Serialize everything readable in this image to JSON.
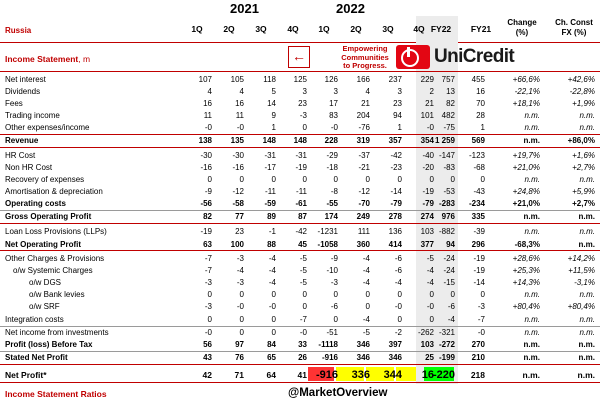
{
  "header": {
    "years": [
      "2021",
      "2022"
    ],
    "region": "Russia",
    "quarters": [
      "1Q",
      "2Q",
      "3Q",
      "4Q",
      "1Q",
      "2Q",
      "3Q",
      "4Q"
    ],
    "fy22": "FY22",
    "fy21": "FY21",
    "change": "Change\n(%)",
    "change_fx": "Ch. Const\nFX (%)"
  },
  "section_title": "Income Statement",
  "section_unit": ", m",
  "brand": {
    "arrow": "←",
    "tagline": "Empowering\nCommunities\nto Progress.",
    "name": "UniCredit",
    "logo_icon": "unicredit-logo-icon",
    "brand_color": "#e30613"
  },
  "rows": [
    {
      "label": "Net interest",
      "values": [
        "107",
        "105",
        "118",
        "125",
        "126",
        "166",
        "237",
        "229",
        "757",
        "455",
        "+66,6%",
        "+42,6%"
      ]
    },
    {
      "label": "Dividends",
      "values": [
        "4",
        "4",
        "5",
        "3",
        "3",
        "4",
        "3",
        "2",
        "13",
        "16",
        "-22,1%",
        "-22,8%"
      ]
    },
    {
      "label": "Fees",
      "values": [
        "16",
        "16",
        "14",
        "23",
        "17",
        "21",
        "23",
        "21",
        "82",
        "70",
        "+18,1%",
        "+1,9%"
      ]
    },
    {
      "label": "Trading income",
      "values": [
        "11",
        "11",
        "9",
        "-3",
        "83",
        "204",
        "94",
        "101",
        "482",
        "28",
        "n.m.",
        "n.m."
      ]
    },
    {
      "label": "Other expenses/income",
      "values": [
        "-0",
        "-0",
        "1",
        "0",
        "-0",
        "-76",
        "1",
        "-0",
        "-75",
        "1",
        "n.m.",
        "n.m."
      ]
    },
    {
      "label": "Revenue",
      "values": [
        "138",
        "135",
        "148",
        "148",
        "228",
        "319",
        "357",
        "354",
        "1 259",
        "569",
        "n.m.",
        "+86,0%"
      ]
    },
    {
      "label": "HR Cost",
      "values": [
        "-30",
        "-30",
        "-31",
        "-31",
        "-29",
        "-37",
        "-42",
        "-40",
        "-147",
        "-123",
        "+19,7%",
        "+1,6%"
      ]
    },
    {
      "label": "Non HR Cost",
      "values": [
        "-16",
        "-16",
        "-17",
        "-19",
        "-18",
        "-21",
        "-23",
        "-20",
        "-83",
        "-68",
        "+21,0%",
        "+2,7%"
      ]
    },
    {
      "label": "Recovery of expenses",
      "values": [
        "0",
        "0",
        "0",
        "0",
        "0",
        "0",
        "0",
        "0",
        "0",
        "0",
        "n.m.",
        "n.m."
      ]
    },
    {
      "label": "Amortisation & depreciation",
      "values": [
        "-9",
        "-12",
        "-11",
        "-11",
        "-8",
        "-12",
        "-14",
        "-19",
        "-53",
        "-43",
        "+24,8%",
        "+5,9%"
      ]
    },
    {
      "label": "Operating costs",
      "values": [
        "-56",
        "-58",
        "-59",
        "-61",
        "-55",
        "-70",
        "-79",
        "-79",
        "-283",
        "-234",
        "+21,0%",
        "+2,7%"
      ]
    },
    {
      "label": "Gross Operating Profit",
      "values": [
        "82",
        "77",
        "89",
        "87",
        "174",
        "249",
        "278",
        "274",
        "976",
        "335",
        "n.m.",
        "n.m."
      ]
    },
    {
      "label": "Loan Loss Provisions (LLPs)",
      "values": [
        "-19",
        "23",
        "-1",
        "-42",
        "-1231",
        "111",
        "136",
        "103",
        "-882",
        "-39",
        "n.m.",
        "n.m."
      ]
    },
    {
      "label": "Net Operating Profit",
      "values": [
        "63",
        "100",
        "88",
        "45",
        "-1058",
        "360",
        "414",
        "377",
        "94",
        "296",
        "-68,3%",
        "n.m."
      ]
    },
    {
      "label": "Other Charges & Provisions",
      "values": [
        "-7",
        "-3",
        "-4",
        "-5",
        "-9",
        "-4",
        "-6",
        "-5",
        "-24",
        "-19",
        "+28,6%",
        "+14,2%"
      ]
    },
    {
      "label": "o/w Systemic Charges",
      "values": [
        "-7",
        "-4",
        "-4",
        "-5",
        "-10",
        "-4",
        "-6",
        "-4",
        "-24",
        "-19",
        "+25,3%",
        "+11,5%"
      ]
    },
    {
      "label": "o/w DGS",
      "values": [
        "-3",
        "-3",
        "-4",
        "-5",
        "-3",
        "-4",
        "-4",
        "-4",
        "-15",
        "-14",
        "+14,3%",
        "-3,1%"
      ]
    },
    {
      "label": "o/w Bank levies",
      "values": [
        "0",
        "0",
        "0",
        "0",
        "0",
        "0",
        "0",
        "0",
        "0",
        "0",
        "n.m.",
        "n.m."
      ]
    },
    {
      "label": "o/w SRF",
      "values": [
        "-3",
        "-0",
        "-0",
        "0",
        "-6",
        "0",
        "-0",
        "-0",
        "-6",
        "-3",
        "+80,4%",
        "+80,4%"
      ]
    },
    {
      "label": "Integration costs",
      "values": [
        "0",
        "0",
        "0",
        "-7",
        "0",
        "-4",
        "0",
        "0",
        "-4",
        "-7",
        "n.m.",
        "n.m."
      ]
    },
    {
      "label": "Net income from investments",
      "values": [
        "-0",
        "0",
        "0",
        "-0",
        "-51",
        "-5",
        "-2",
        "-262",
        "-321",
        "-0",
        "n.m.",
        "n.m."
      ]
    },
    {
      "label": "Profit (loss) Before Tax",
      "values": [
        "56",
        "97",
        "84",
        "33",
        "-1118",
        "346",
        "397",
        "103",
        "-272",
        "270",
        "n.m.",
        "n.m."
      ]
    },
    {
      "label": "Stated Net Profit",
      "values": [
        "43",
        "76",
        "65",
        "26",
        "-916",
        "346",
        "346",
        "25",
        "-199",
        "210",
        "n.m.",
        "n.m."
      ]
    },
    {
      "label": "Net Profit*",
      "values": [
        "42",
        "71",
        "64",
        "41",
        "-916",
        "336",
        "344",
        "16",
        "-220",
        "218",
        "n.m.",
        "n.m."
      ]
    }
  ],
  "highlight_colors": {
    "red": "#ff3333",
    "yellow": "#ffff00",
    "green": "#00ff00"
  },
  "watermark": "@MarketOverview",
  "footer": "Income Statement Ratios"
}
